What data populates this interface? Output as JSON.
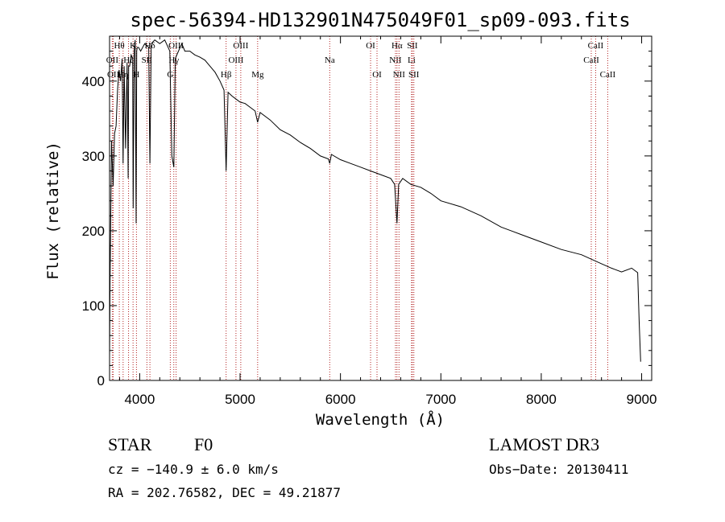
{
  "chart_data": {
    "type": "line",
    "title": "spec-56394-HD132901N475049F01_sp09-093.fits",
    "xlabel": "Wavelength (Å)",
    "ylabel": "Flux (relative)",
    "xlim": [
      3700,
      9100
    ],
    "ylim": [
      0,
      460
    ],
    "xticks": [
      4000,
      5000,
      6000,
      7000,
      8000,
      9000
    ],
    "yticks": [
      0,
      100,
      200,
      300,
      400
    ],
    "line_color": "#b22222",
    "series": [
      {
        "name": "spectrum",
        "x": [
          3700,
          3705,
          3720,
          3735,
          3750,
          3765,
          3780,
          3795,
          3810,
          3825,
          3835,
          3845,
          3860,
          3875,
          3885,
          3890,
          3900,
          3915,
          3930,
          3935,
          3945,
          3955,
          3965,
          3970,
          3975,
          3990,
          4010,
          4050,
          4090,
          4102,
          4115,
          4150,
          4200,
          4250,
          4300,
          4320,
          4340,
          4355,
          4380,
          4420,
          4450,
          4500,
          4550,
          4600,
          4650,
          4700,
          4750,
          4800,
          4840,
          4861,
          4880,
          4920,
          4960,
          5000,
          5050,
          5100,
          5150,
          5175,
          5200,
          5300,
          5400,
          5500,
          5600,
          5700,
          5800,
          5880,
          5893,
          5910,
          6000,
          6100,
          6200,
          6300,
          6400,
          6500,
          6540,
          6563,
          6580,
          6620,
          6700,
          6800,
          6900,
          7000,
          7200,
          7400,
          7600,
          7800,
          8000,
          8200,
          8400,
          8500,
          8600,
          8700,
          8800,
          8900,
          8960,
          8975,
          8990
        ],
        "y": [
          30,
          135,
          320,
          260,
          330,
          340,
          390,
          415,
          400,
          430,
          290,
          420,
          310,
          425,
          270,
          420,
          420,
          435,
          430,
          230,
          440,
          455,
          210,
          440,
          445,
          445,
          440,
          450,
          445,
          290,
          450,
          455,
          450,
          455,
          440,
          300,
          285,
          430,
          438,
          450,
          440,
          440,
          435,
          432,
          428,
          420,
          412,
          400,
          388,
          280,
          385,
          380,
          376,
          372,
          370,
          365,
          360,
          345,
          358,
          348,
          335,
          328,
          318,
          310,
          300,
          296,
          290,
          302,
          295,
          290,
          285,
          280,
          275,
          270,
          262,
          210,
          262,
          270,
          262,
          258,
          250,
          240,
          232,
          220,
          205,
          195,
          185,
          175,
          168,
          162,
          156,
          150,
          145,
          150,
          144,
          80,
          25
        ]
      }
    ],
    "lines": [
      {
        "label": "Hθ",
        "x": 3797,
        "row": 0
      },
      {
        "label": "OII",
        "x": 3727,
        "row": 1
      },
      {
        "label": "OII",
        "x": 3737,
        "row": 2
      },
      {
        "label": "Hη",
        "x": 3835,
        "row": 2
      },
      {
        "label": "Hζ",
        "x": 3889,
        "row": 1
      },
      {
        "label": "K",
        "x": 3934,
        "row": 0
      },
      {
        "label": "H",
        "x": 3968,
        "row": 2
      },
      {
        "label": "SII",
        "x": 4072,
        "row": 1
      },
      {
        "label": "Hδ",
        "x": 4102,
        "row": 0
      },
      {
        "label": "Hγ",
        "x": 4340,
        "row": 1
      },
      {
        "label": "G",
        "x": 4305,
        "row": 2
      },
      {
        "label": "OIII",
        "x": 4363,
        "row": 0
      },
      {
        "label": "Hβ",
        "x": 4861,
        "row": 2
      },
      {
        "label": "OIII",
        "x": 4959,
        "row": 1
      },
      {
        "label": "OIII",
        "x": 5007,
        "row": 0
      },
      {
        "label": "Mg",
        "x": 5175,
        "row": 2
      },
      {
        "label": "Na",
        "x": 5893,
        "row": 1
      },
      {
        "label": "OI",
        "x": 6300,
        "row": 0
      },
      {
        "label": "OI",
        "x": 6364,
        "row": 2
      },
      {
        "label": "NII",
        "x": 6548,
        "row": 1
      },
      {
        "label": "Hα",
        "x": 6563,
        "row": 0
      },
      {
        "label": "NII",
        "x": 6583,
        "row": 2
      },
      {
        "label": "Li",
        "x": 6708,
        "row": 1
      },
      {
        "label": "SII",
        "x": 6716,
        "row": 0
      },
      {
        "label": "SII",
        "x": 6731,
        "row": 2
      },
      {
        "label": "CaII",
        "x": 8498,
        "row": 1
      },
      {
        "label": "CaII",
        "x": 8542,
        "row": 0
      },
      {
        "label": "CaII",
        "x": 8662,
        "row": 2
      }
    ]
  },
  "info": {
    "object": "STAR",
    "subclass": "F0",
    "survey": "LAMOST DR3",
    "cz": "cz = −140.9 ± 6.0 km/s",
    "obs_date": "Obs−Date: 20130411",
    "radec": "RA = 202.76582, DEC =  49.21877"
  }
}
